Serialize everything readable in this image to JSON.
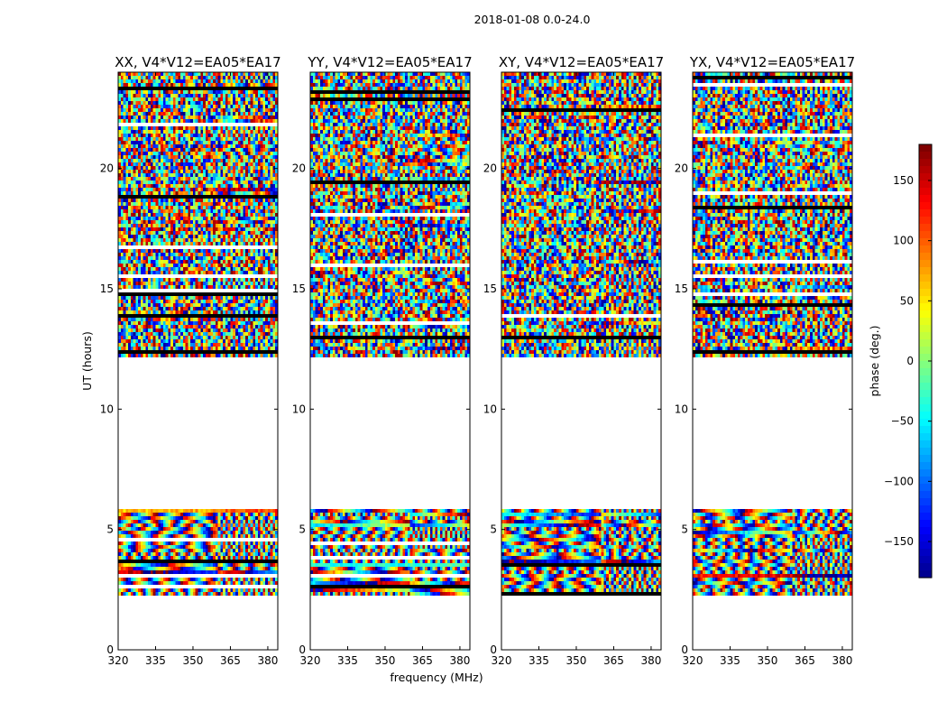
{
  "chart_data": {
    "type": "heatmap",
    "suptitle": "2018-01-08 0.0-24.0",
    "xlabel": "frequency (MHz)",
    "ylabel": "UT (hours)",
    "xlim": [
      320,
      384
    ],
    "ylim": [
      0,
      24
    ],
    "xticks": [
      320,
      335,
      350,
      365,
      380
    ],
    "xtick_labels": [
      "320",
      "335",
      "350",
      "365",
      "380"
    ],
    "yticks": [
      0,
      5,
      10,
      15,
      20
    ],
    "ytick_labels": [
      "0",
      "5",
      "10",
      "15",
      "20"
    ],
    "colorbar": {
      "label": "phase (deg.)",
      "range": [
        -180,
        180
      ],
      "colormap": "jet",
      "ticks": [
        150,
        100,
        50,
        0,
        -50,
        -100,
        -150
      ],
      "tick_labels": [
        "150",
        "100",
        "50",
        "0",
        "−50",
        "−100",
        "−150"
      ]
    },
    "data_time_ranges_hours": [
      [
        2.2,
        5.8
      ],
      [
        12.1,
        24.0
      ]
    ],
    "panels": [
      {
        "title": "XX, V4*V12=EA05*EA17",
        "polarization": "XX"
      },
      {
        "title": "YY, V4*V12=EA05*EA17",
        "polarization": "YY"
      },
      {
        "title": "XY, V4*V12=EA05*EA17",
        "polarization": "XY"
      },
      {
        "title": "YX, V4*V12=EA05*EA17",
        "polarization": "YX"
      }
    ]
  }
}
